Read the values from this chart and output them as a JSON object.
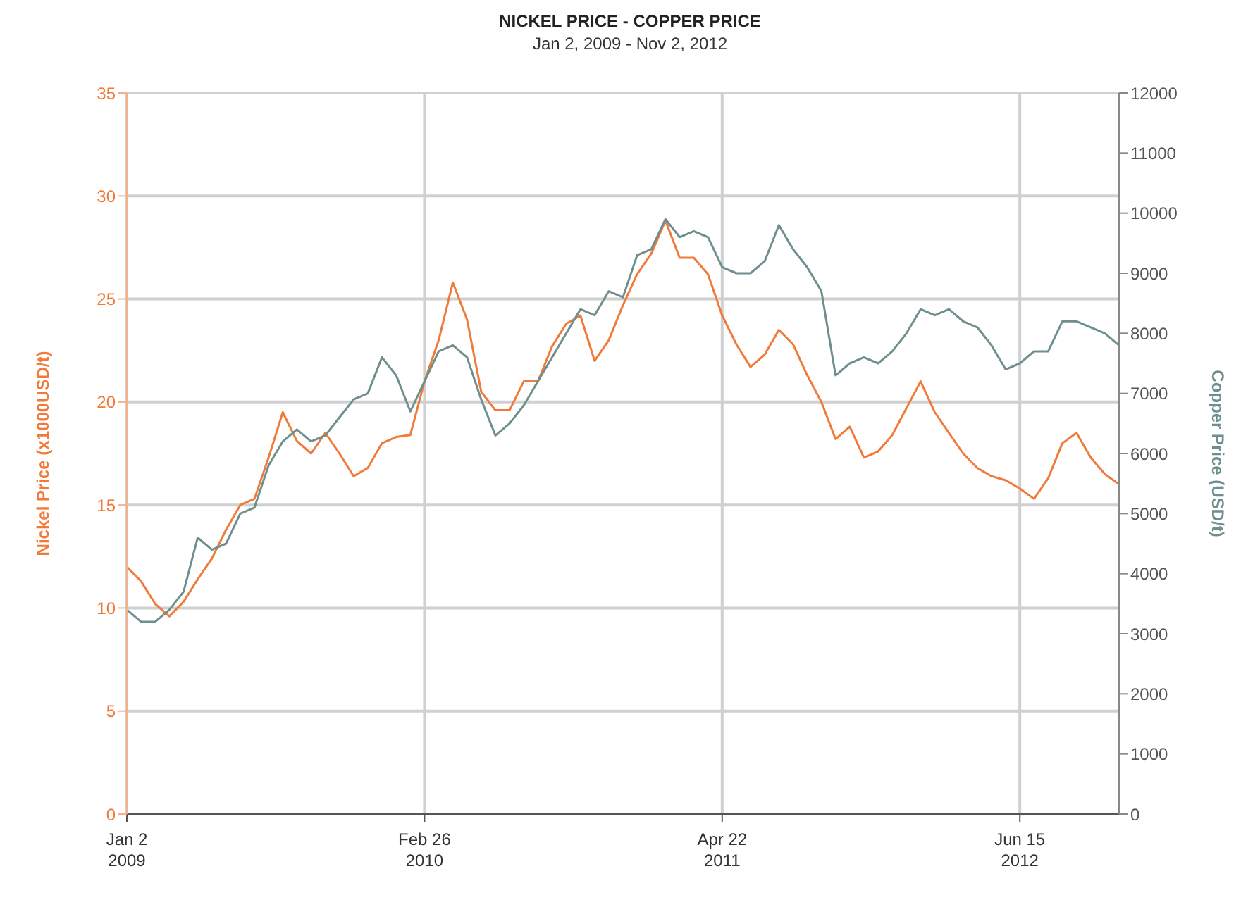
{
  "chart_data": {
    "type": "line",
    "title": "NICKEL PRICE - COPPER PRICE",
    "subtitle": "Jan 2, 2009 - Nov 2, 2012",
    "ylabel": "Nickel Price (x1000USD/t)",
    "y2label": "Copper Price (USD/t)",
    "x": [
      "2009-01-02",
      "2009-01-22",
      "2009-02-11",
      "2009-03-03",
      "2009-03-23",
      "2009-04-12",
      "2009-05-02",
      "2009-05-22",
      "2009-06-11",
      "2009-07-01",
      "2009-07-21",
      "2009-08-10",
      "2009-08-30",
      "2009-09-19",
      "2009-10-09",
      "2009-10-29",
      "2009-11-18",
      "2009-12-08",
      "2009-12-28",
      "2010-01-17",
      "2010-02-06",
      "2010-02-26",
      "2010-03-18",
      "2010-04-07",
      "2010-04-27",
      "2010-05-17",
      "2010-06-06",
      "2010-06-26",
      "2010-07-16",
      "2010-08-05",
      "2010-08-25",
      "2010-09-14",
      "2010-10-04",
      "2010-10-24",
      "2010-11-13",
      "2010-12-03",
      "2010-12-23",
      "2011-01-12",
      "2011-02-01",
      "2011-02-21",
      "2011-03-13",
      "2011-04-02",
      "2011-04-22",
      "2011-05-12",
      "2011-06-01",
      "2011-06-21",
      "2011-07-11",
      "2011-07-31",
      "2011-08-20",
      "2011-09-09",
      "2011-09-29",
      "2011-10-19",
      "2011-11-08",
      "2011-11-28",
      "2011-12-18",
      "2012-01-07",
      "2012-01-27",
      "2012-02-16",
      "2012-03-07",
      "2012-03-27",
      "2012-04-16",
      "2012-05-06",
      "2012-05-26",
      "2012-06-15",
      "2012-07-05",
      "2012-07-25",
      "2012-08-14",
      "2012-09-03",
      "2012-09-23",
      "2012-10-13",
      "2012-11-02"
    ],
    "series": [
      {
        "color": "#f07a3a",
        "values": [
          12,
          11.3,
          10.2,
          9.6,
          10.3,
          11.4,
          12.4,
          13.8,
          15,
          15.3,
          17.3,
          19.5,
          18.1,
          17.5,
          18.5,
          17.5,
          16.4,
          16.8,
          18,
          18.3,
          18.4,
          21,
          23,
          25.8,
          24,
          20.5,
          19.6,
          19.6,
          21,
          21,
          22.7,
          23.8,
          24.2,
          22,
          23,
          24.7,
          26.2,
          27.2,
          28.8,
          27,
          27,
          26.2,
          24.2,
          22.8,
          21.7,
          22.3,
          23.5,
          22.8,
          21.3,
          20,
          18.2,
          18.8,
          17.3,
          17.6,
          18.4,
          19.7,
          21,
          19.5,
          18.5,
          17.5,
          16.8,
          16.4,
          16.2,
          15.8,
          15.3,
          16.3,
          18,
          18.5,
          17.3,
          16.5,
          16
        ]
      },
      {
        "color": "#6f8f8f",
        "axis": "y2",
        "values": [
          3400,
          3200,
          3200,
          3400,
          3700,
          4600,
          4400,
          4500,
          5000,
          5100,
          5800,
          6200,
          6400,
          6200,
          6300,
          6600,
          6900,
          7000,
          7600,
          7300,
          6700,
          7200,
          7700,
          7800,
          7600,
          6900,
          6300,
          6500,
          6800,
          7200,
          7600,
          8000,
          8400,
          8300,
          8700,
          8600,
          9300,
          9400,
          9900,
          9600,
          9700,
          9600,
          9100,
          9000,
          9000,
          9200,
          9800,
          9400,
          9100,
          8700,
          7300,
          7500,
          7600,
          7500,
          7700,
          8000,
          8400,
          8300,
          8400,
          8200,
          8100,
          7800,
          7400,
          7500,
          7700,
          7700,
          8200,
          8200,
          8100,
          8000,
          7800
        ]
      }
    ],
    "xlim": [
      "2009-01-02",
      "2012-11-02"
    ],
    "xticks": [
      {
        "value": "2009-01-02",
        "label": "Jan 2\n2009"
      },
      {
        "value": "2010-02-26",
        "label": "Feb 26\n2010"
      },
      {
        "value": "2011-04-22",
        "label": "Apr 22\n2011"
      },
      {
        "value": "2012-06-15",
        "label": "Jun 15\n2012"
      }
    ],
    "ylim": [
      0,
      35
    ],
    "yticks": [
      0,
      5,
      10,
      15,
      20,
      25,
      30,
      35
    ],
    "y2lim": [
      0,
      12000
    ],
    "y2ticks": [
      0,
      1000,
      2000,
      3000,
      4000,
      5000,
      6000,
      7000,
      8000,
      9000,
      10000,
      11000,
      12000
    ],
    "grid": true,
    "marker": "none",
    "line_style": "solid"
  }
}
